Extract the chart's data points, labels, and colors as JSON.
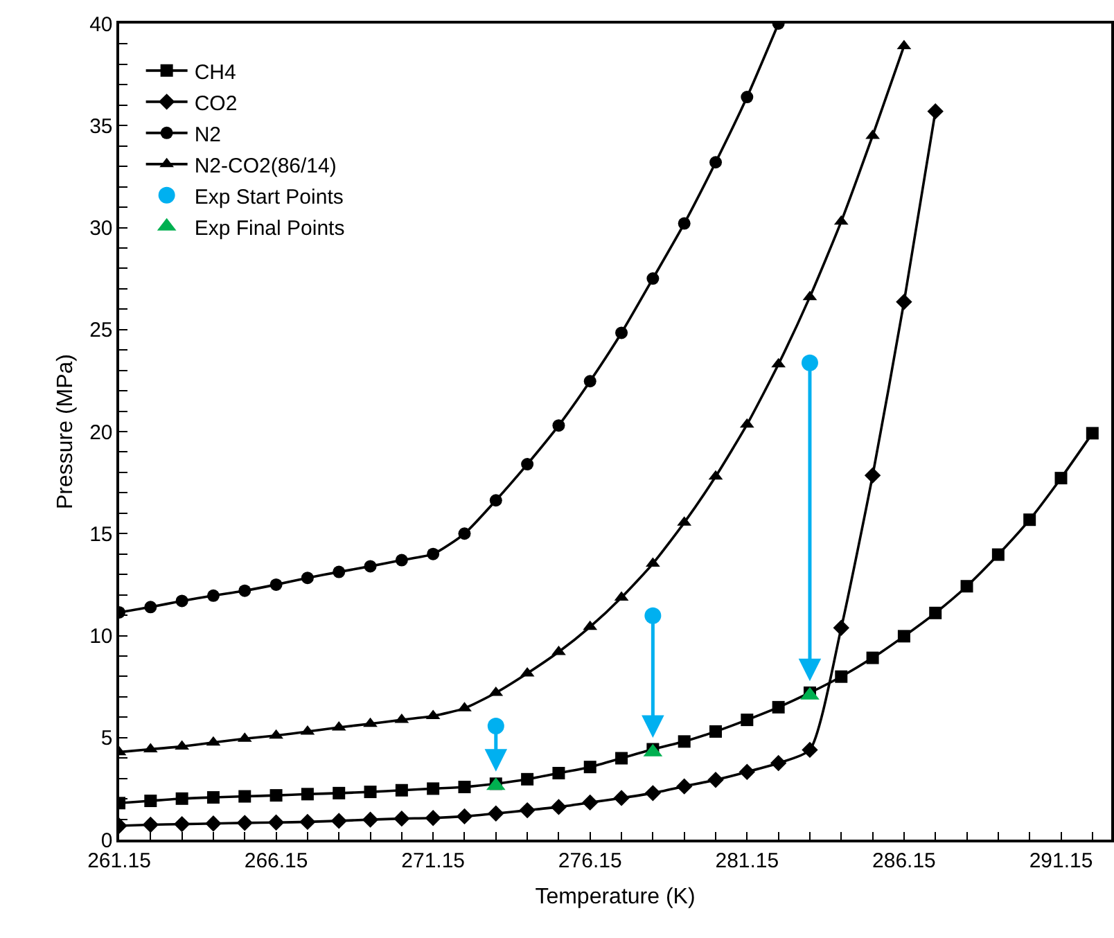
{
  "chart_data": {
    "type": "line",
    "xlabel": "Temperature (K)",
    "ylabel": "Pressure (MPa)",
    "x": [
      261.15,
      262.15,
      263.15,
      264.15,
      265.15,
      266.15,
      267.15,
      268.15,
      269.15,
      270.15,
      271.15,
      272.15,
      273.15,
      274.15,
      275.15,
      276.15,
      277.15,
      278.15,
      279.15,
      280.15,
      281.15,
      282.15,
      283.15,
      284.15,
      285.15,
      286.15,
      287.15,
      288.15,
      289.15,
      290.15,
      291.15,
      292.15
    ],
    "xlim": [
      261.15,
      292.75
    ],
    "xticks": [
      {
        "value": 261.15,
        "label": "261.15"
      },
      {
        "value": 262.15,
        "label": null
      },
      {
        "value": 263.15,
        "label": null
      },
      {
        "value": 264.15,
        "label": null
      },
      {
        "value": 265.15,
        "label": null
      },
      {
        "value": 266.15,
        "label": "266.15"
      },
      {
        "value": 267.15,
        "label": null
      },
      {
        "value": 268.15,
        "label": null
      },
      {
        "value": 269.15,
        "label": null
      },
      {
        "value": 270.15,
        "label": null
      },
      {
        "value": 271.15,
        "label": "271.15"
      },
      {
        "value": 272.15,
        "label": null
      },
      {
        "value": 273.15,
        "label": null
      },
      {
        "value": 274.15,
        "label": null
      },
      {
        "value": 275.15,
        "label": null
      },
      {
        "value": 276.15,
        "label": "276.15"
      },
      {
        "value": 277.15,
        "label": null
      },
      {
        "value": 278.15,
        "label": null
      },
      {
        "value": 279.15,
        "label": null
      },
      {
        "value": 280.15,
        "label": null
      },
      {
        "value": 281.15,
        "label": "281.15"
      },
      {
        "value": 282.15,
        "label": null
      },
      {
        "value": 283.15,
        "label": null
      },
      {
        "value": 284.15,
        "label": null
      },
      {
        "value": 285.15,
        "label": null
      },
      {
        "value": 286.15,
        "label": "286.15"
      },
      {
        "value": 287.15,
        "label": null
      },
      {
        "value": 288.15,
        "label": null
      },
      {
        "value": 289.15,
        "label": null
      },
      {
        "value": 290.15,
        "label": null
      },
      {
        "value": 291.15,
        "label": "291.15"
      },
      {
        "value": 292.15,
        "label": null
      }
    ],
    "ylim": [
      0,
      40
    ],
    "yticks": [
      0,
      {
        "value": 1,
        "label": null
      },
      {
        "value": 2,
        "label": null
      },
      {
        "value": 3,
        "label": null
      },
      {
        "value": 4,
        "label": null
      },
      5,
      {
        "value": 6,
        "label": null
      },
      {
        "value": 7,
        "label": null
      },
      {
        "value": 8,
        "label": null
      },
      {
        "value": 9,
        "label": null
      },
      10,
      {
        "value": 11,
        "label": null
      },
      {
        "value": 12,
        "label": null
      },
      {
        "value": 13,
        "label": null
      },
      {
        "value": 14,
        "label": null
      },
      15,
      {
        "value": 16,
        "label": null
      },
      {
        "value": 17,
        "label": null
      },
      {
        "value": 18,
        "label": null
      },
      {
        "value": 19,
        "label": null
      },
      20,
      {
        "value": 21,
        "label": null
      },
      {
        "value": 22,
        "label": null
      },
      {
        "value": 23,
        "label": null
      },
      {
        "value": 24,
        "label": null
      },
      25,
      {
        "value": 26,
        "label": null
      },
      {
        "value": 27,
        "label": null
      },
      {
        "value": 28,
        "label": null
      },
      {
        "value": 29,
        "label": null
      },
      30,
      {
        "value": 31,
        "label": null
      },
      {
        "value": 32,
        "label": null
      },
      {
        "value": 33,
        "label": null
      },
      {
        "value": 34,
        "label": null
      },
      35,
      {
        "value": 36,
        "label": null
      },
      {
        "value": 37,
        "label": null
      },
      {
        "value": 38,
        "label": null
      },
      {
        "value": 39,
        "label": null
      },
      40
    ],
    "grid": false,
    "legend": "top left",
    "series": [
      {
        "name": "CH4",
        "color": "#000000",
        "marker": "square",
        "values": [
          1.79,
          1.9,
          2.01,
          2.07,
          2.12,
          2.17,
          2.23,
          2.28,
          2.34,
          2.42,
          2.5,
          2.58,
          2.74,
          2.96,
          3.26,
          3.56,
          3.99,
          4.43,
          4.81,
          5.3,
          5.87,
          6.49,
          7.2,
          7.99,
          8.91,
          9.97,
          11.11,
          12.42,
          13.97,
          15.68,
          17.72,
          19.92
        ]
      },
      {
        "name": "CO2",
        "color": "#000000",
        "marker": "diamond",
        "values": [
          0.68,
          0.73,
          0.76,
          0.79,
          0.82,
          0.84,
          0.87,
          0.92,
          0.98,
          1.03,
          1.06,
          1.14,
          1.28,
          1.44,
          1.6,
          1.82,
          2.04,
          2.28,
          2.61,
          2.93,
          3.32,
          3.75,
          4.4,
          10.38,
          17.85,
          26.36,
          35.7,
          null,
          null,
          null,
          null,
          null
        ]
      },
      {
        "name": "N2",
        "color": "#000000",
        "marker": "circle",
        "values": [
          11.14,
          11.4,
          11.7,
          11.96,
          12.2,
          12.5,
          12.83,
          13.12,
          13.4,
          13.7,
          14.0,
          15.0,
          16.63,
          18.4,
          20.3,
          22.47,
          24.84,
          27.5,
          30.2,
          33.2,
          36.4,
          40.0,
          null,
          null,
          null,
          null,
          null,
          null,
          null,
          null,
          null,
          null
        ]
      },
      {
        "name": "N2-CO2(86/14)",
        "color": "#000000",
        "marker": "triangle",
        "values": [
          4.29,
          4.43,
          4.57,
          4.76,
          4.95,
          5.1,
          5.3,
          5.5,
          5.68,
          5.87,
          6.06,
          6.44,
          7.2,
          8.15,
          9.2,
          10.43,
          11.87,
          13.53,
          15.54,
          17.8,
          20.35,
          23.3,
          26.6,
          30.3,
          34.5,
          38.9,
          null,
          null,
          null,
          null,
          null,
          null
        ]
      },
      {
        "name": "Exp Start Points",
        "type": "scatter",
        "color": "#00b0f0",
        "marker": "circle",
        "x": [
          273.15,
          278.15,
          283.15
        ],
        "values": [
          5.57,
          10.98,
          23.37
        ]
      },
      {
        "name": "Exp Final Points",
        "type": "scatter",
        "color": "#00b050",
        "marker": "triangle",
        "x": [
          273.15,
          278.15,
          283.15
        ],
        "values": [
          2.64,
          4.29,
          7.07
        ]
      }
    ]
  }
}
